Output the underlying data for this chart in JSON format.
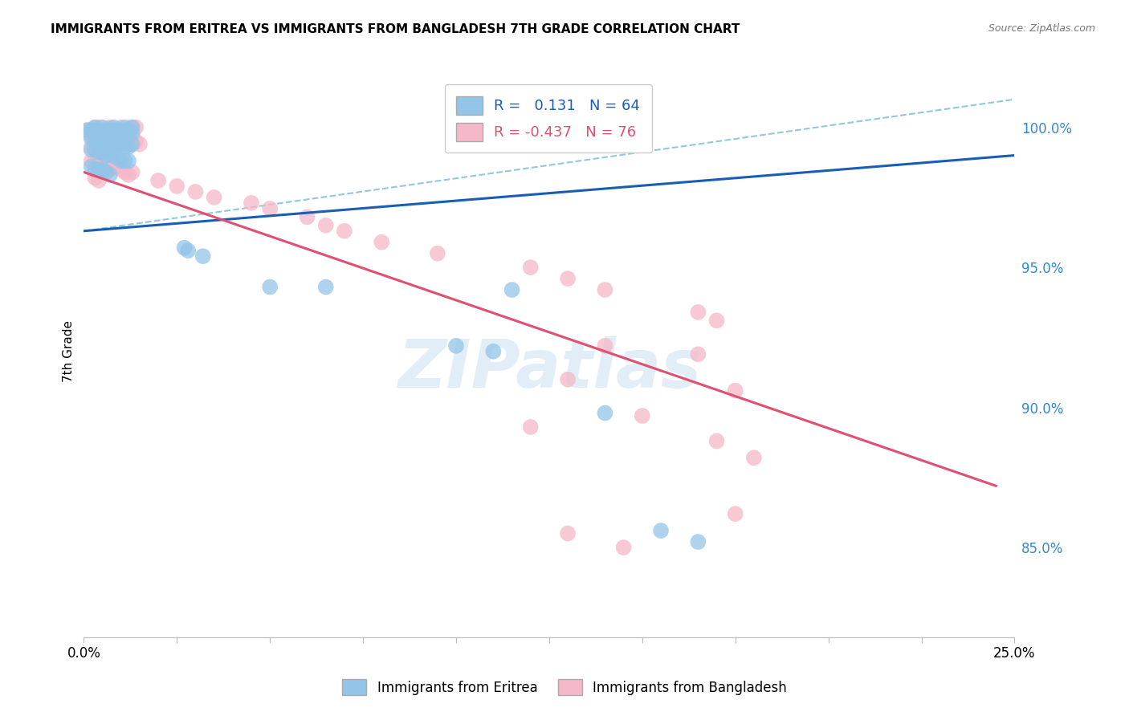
{
  "title": "IMMIGRANTS FROM ERITREA VS IMMIGRANTS FROM BANGLADESH 7TH GRADE CORRELATION CHART",
  "source": "Source: ZipAtlas.com",
  "ylabel": "7th Grade",
  "ytick_labels": [
    "85.0%",
    "90.0%",
    "95.0%",
    "100.0%"
  ],
  "ytick_values": [
    0.85,
    0.9,
    0.95,
    1.0
  ],
  "xmin": 0.0,
  "xmax": 0.25,
  "ymin": 0.818,
  "ymax": 1.022,
  "legend_r1": "R =   0.131",
  "legend_n1": "N = 64",
  "legend_r2": "R = -0.437",
  "legend_n2": "N = 76",
  "color_blue": "#92c5e8",
  "color_pink": "#f5b8c8",
  "line_blue": "#1a5db5",
  "line_pink": "#e05070",
  "line_dashed_color": "#90c8e0",
  "watermark": "ZIPatlas",
  "blue_scatter": [
    [
      0.001,
      0.999
    ],
    [
      0.002,
      0.999
    ],
    [
      0.003,
      1.0
    ],
    [
      0.004,
      0.999
    ],
    [
      0.005,
      1.0
    ],
    [
      0.006,
      0.999
    ],
    [
      0.007,
      0.999
    ],
    [
      0.008,
      1.0
    ],
    [
      0.009,
      0.999
    ],
    [
      0.01,
      0.999
    ],
    [
      0.011,
      1.0
    ],
    [
      0.012,
      0.999
    ],
    [
      0.013,
      1.0
    ],
    [
      0.003,
      0.998
    ],
    [
      0.004,
      0.998
    ],
    [
      0.005,
      0.997
    ],
    [
      0.006,
      0.998
    ],
    [
      0.007,
      0.997
    ],
    [
      0.008,
      0.997
    ],
    [
      0.009,
      0.998
    ],
    [
      0.01,
      0.997
    ],
    [
      0.011,
      0.998
    ],
    [
      0.012,
      0.997
    ],
    [
      0.013,
      0.998
    ],
    [
      0.002,
      0.996
    ],
    [
      0.003,
      0.996
    ],
    [
      0.004,
      0.995
    ],
    [
      0.005,
      0.995
    ],
    [
      0.006,
      0.994
    ],
    [
      0.007,
      0.994
    ],
    [
      0.008,
      0.995
    ],
    [
      0.009,
      0.994
    ],
    [
      0.01,
      0.994
    ],
    [
      0.011,
      0.993
    ],
    [
      0.012,
      0.993
    ],
    [
      0.013,
      0.994
    ],
    [
      0.002,
      0.992
    ],
    [
      0.003,
      0.992
    ],
    [
      0.004,
      0.991
    ],
    [
      0.005,
      0.991
    ],
    [
      0.006,
      0.99
    ],
    [
      0.007,
      0.99
    ],
    [
      0.008,
      0.991
    ],
    [
      0.009,
      0.989
    ],
    [
      0.01,
      0.988
    ],
    [
      0.011,
      0.988
    ],
    [
      0.012,
      0.988
    ],
    [
      0.002,
      0.986
    ],
    [
      0.003,
      0.985
    ],
    [
      0.004,
      0.985
    ],
    [
      0.005,
      0.985
    ],
    [
      0.006,
      0.984
    ],
    [
      0.007,
      0.983
    ],
    [
      0.027,
      0.957
    ],
    [
      0.028,
      0.956
    ],
    [
      0.032,
      0.954
    ],
    [
      0.05,
      0.943
    ],
    [
      0.065,
      0.943
    ],
    [
      0.1,
      0.922
    ],
    [
      0.11,
      0.92
    ],
    [
      0.115,
      0.942
    ],
    [
      0.14,
      0.898
    ],
    [
      0.155,
      0.856
    ],
    [
      0.165,
      0.852
    ]
  ],
  "pink_scatter": [
    [
      0.001,
      0.999
    ],
    [
      0.002,
      0.999
    ],
    [
      0.003,
      1.0
    ],
    [
      0.004,
      1.0
    ],
    [
      0.005,
      0.999
    ],
    [
      0.006,
      0.999
    ],
    [
      0.007,
      1.0
    ],
    [
      0.008,
      0.999
    ],
    [
      0.009,
      0.999
    ],
    [
      0.01,
      1.0
    ],
    [
      0.011,
      0.999
    ],
    [
      0.012,
      0.999
    ],
    [
      0.013,
      1.0
    ],
    [
      0.014,
      1.0
    ],
    [
      0.002,
      0.997
    ],
    [
      0.003,
      0.997
    ],
    [
      0.004,
      0.996
    ],
    [
      0.005,
      0.997
    ],
    [
      0.006,
      0.996
    ],
    [
      0.007,
      0.996
    ],
    [
      0.008,
      0.995
    ],
    [
      0.009,
      0.995
    ],
    [
      0.01,
      0.995
    ],
    [
      0.011,
      0.996
    ],
    [
      0.012,
      0.994
    ],
    [
      0.013,
      0.994
    ],
    [
      0.014,
      0.995
    ],
    [
      0.015,
      0.994
    ],
    [
      0.002,
      0.993
    ],
    [
      0.003,
      0.992
    ],
    [
      0.004,
      0.991
    ],
    [
      0.005,
      0.991
    ],
    [
      0.006,
      0.99
    ],
    [
      0.007,
      0.99
    ],
    [
      0.008,
      0.991
    ],
    [
      0.002,
      0.988
    ],
    [
      0.003,
      0.988
    ],
    [
      0.004,
      0.987
    ],
    [
      0.005,
      0.986
    ],
    [
      0.006,
      0.985
    ],
    [
      0.007,
      0.985
    ],
    [
      0.008,
      0.986
    ],
    [
      0.009,
      0.986
    ],
    [
      0.01,
      0.985
    ],
    [
      0.011,
      0.984
    ],
    [
      0.012,
      0.983
    ],
    [
      0.013,
      0.984
    ],
    [
      0.003,
      0.982
    ],
    [
      0.004,
      0.981
    ],
    [
      0.02,
      0.981
    ],
    [
      0.025,
      0.979
    ],
    [
      0.03,
      0.977
    ],
    [
      0.035,
      0.975
    ],
    [
      0.045,
      0.973
    ],
    [
      0.05,
      0.971
    ],
    [
      0.06,
      0.968
    ],
    [
      0.065,
      0.965
    ],
    [
      0.07,
      0.963
    ],
    [
      0.08,
      0.959
    ],
    [
      0.095,
      0.955
    ],
    [
      0.12,
      0.95
    ],
    [
      0.13,
      0.946
    ],
    [
      0.14,
      0.942
    ],
    [
      0.165,
      0.934
    ],
    [
      0.17,
      0.931
    ],
    [
      0.14,
      0.922
    ],
    [
      0.165,
      0.919
    ],
    [
      0.13,
      0.91
    ],
    [
      0.175,
      0.906
    ],
    [
      0.15,
      0.897
    ],
    [
      0.12,
      0.893
    ],
    [
      0.17,
      0.888
    ],
    [
      0.18,
      0.882
    ],
    [
      0.175,
      0.862
    ],
    [
      0.13,
      0.855
    ],
    [
      0.145,
      0.85
    ]
  ],
  "blue_line_x": [
    0.0,
    0.25
  ],
  "blue_line_y": [
    0.963,
    0.99
  ],
  "pink_line_x": [
    0.0,
    0.245
  ],
  "pink_line_y": [
    0.984,
    0.872
  ],
  "dashed_line_x": [
    0.0,
    0.25
  ],
  "dashed_line_y": [
    0.963,
    1.01
  ]
}
